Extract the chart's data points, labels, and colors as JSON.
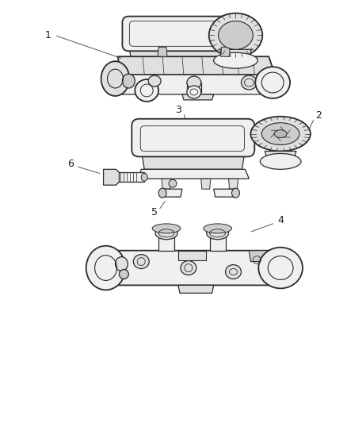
{
  "background_color": "#ffffff",
  "line_color": "#2a2a2a",
  "label_color": "#1a1a1a",
  "fig_width": 4.38,
  "fig_height": 5.33,
  "dpi": 100,
  "label_fontsize": 9,
  "callout_line_color": "#555555",
  "callout_lw": 0.7,
  "part_lw": 0.9,
  "part_lw_thick": 1.3,
  "fill_light": "#f0f0f0",
  "fill_mid": "#e0e0e0",
  "fill_dark": "#cccccc",
  "fill_darker": "#b8b8b8"
}
